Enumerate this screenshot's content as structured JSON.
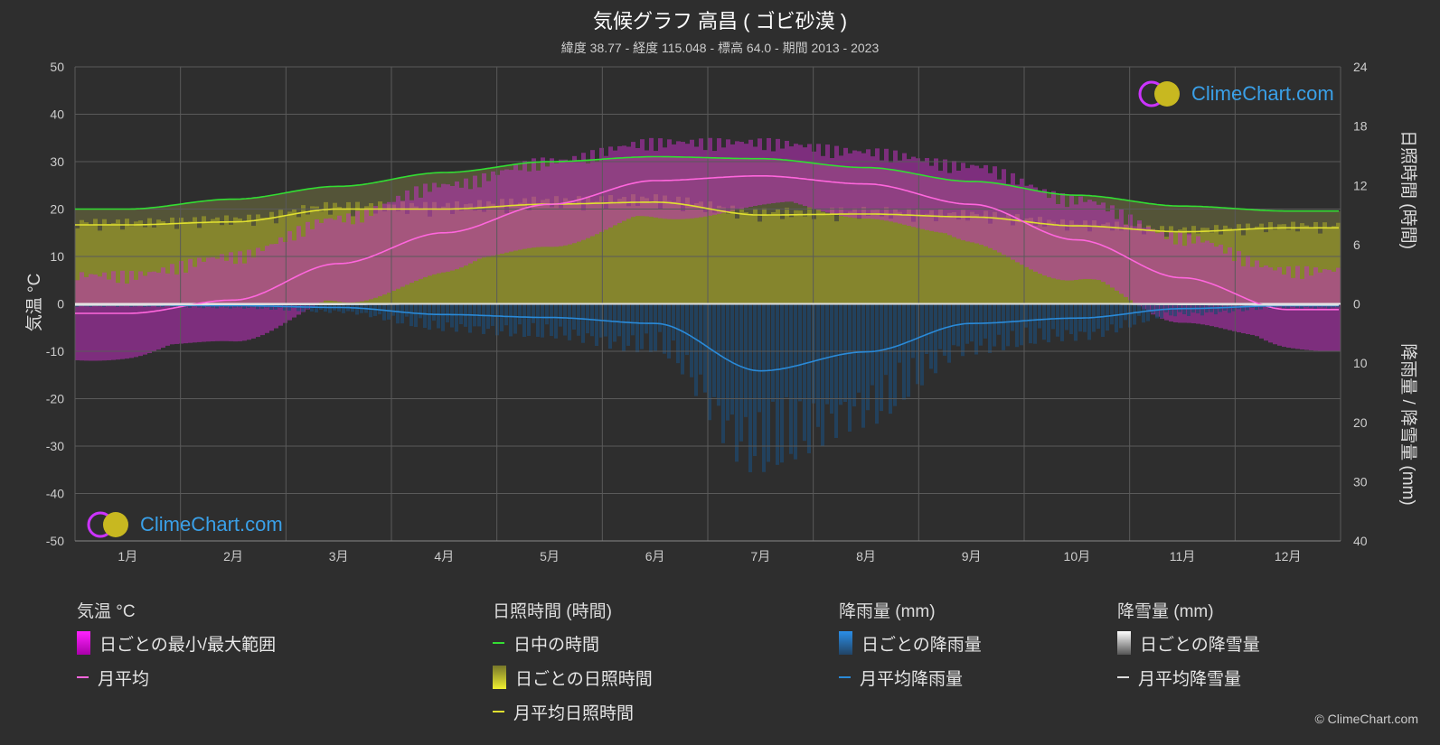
{
  "title": "気候グラフ 高昌 ( ゴビ砂漠 )",
  "subtitle": "緯度 38.77 - 経度 115.048 - 標高 64.0 - 期間 2013 - 2023",
  "copyright": "© ClimeChart.com",
  "logo_text": "ClimeChart.com",
  "legend": {
    "temp": {
      "head": "気温 °C",
      "items": [
        "日ごとの最小/最大範囲",
        "月平均"
      ]
    },
    "sun": {
      "head": "日照時間 (時間)",
      "items": [
        "日中の時間",
        "日ごとの日照時間",
        "月平均日照時間"
      ]
    },
    "rain": {
      "head": "降雨量 (mm)",
      "items": [
        "日ごとの降雨量",
        "月平均降雨量"
      ]
    },
    "snow": {
      "head": "降雪量 (mm)",
      "items": [
        "日ごとの降雪量",
        "月平均降雪量"
      ]
    }
  },
  "chart_data": {
    "type": "line",
    "x_categories": [
      "1月",
      "2月",
      "3月",
      "4月",
      "5月",
      "6月",
      "7月",
      "8月",
      "9月",
      "10月",
      "11月",
      "12月"
    ],
    "y_left": {
      "label": "気温 °C",
      "range": [
        -50,
        50
      ],
      "ticks": [
        50,
        40,
        30,
        20,
        10,
        0,
        -10,
        -20,
        -30,
        -40,
        -50
      ]
    },
    "y_right_top": {
      "label": "日照時間 (時間)",
      "range": [
        0,
        24
      ],
      "ticks": [
        24,
        18,
        12,
        6,
        0
      ]
    },
    "y_right_bottom": {
      "label": "降雨量 / 降雪量 (mm)",
      "range": [
        0,
        40
      ],
      "ticks": [
        10,
        20,
        30,
        40
      ]
    },
    "series": [
      {
        "name": "日中の時間",
        "color": "#33dd33",
        "unit": "hours",
        "values": [
          9.6,
          10.6,
          11.9,
          13.3,
          14.4,
          14.9,
          14.7,
          13.8,
          12.4,
          11.0,
          9.9,
          9.4
        ]
      },
      {
        "name": "月平均日照時間",
        "color": "#e0e030",
        "unit": "hours",
        "values": [
          8.0,
          8.3,
          9.6,
          9.6,
          10.1,
          10.3,
          9.0,
          9.1,
          8.8,
          7.9,
          7.3,
          7.7
        ]
      },
      {
        "name": "月平均",
        "color": "#ff66dd",
        "unit": "°C",
        "values": [
          -2.0,
          0.8,
          8.5,
          15.0,
          21.0,
          26.0,
          27.0,
          25.3,
          21.0,
          13.5,
          5.5,
          -1.2
        ]
      },
      {
        "name": "月平均降雨量",
        "color": "#2a8ad8",
        "unit": "mm",
        "values": [
          0.2,
          0.3,
          0.6,
          1.8,
          2.3,
          3.3,
          11.3,
          8.1,
          3.3,
          2.4,
          0.8,
          0.3
        ]
      },
      {
        "name": "月平均降雪量",
        "color": "#dddddd",
        "unit": "mm",
        "values": [
          0.2,
          0.1,
          0.1,
          0,
          0,
          0,
          0,
          0,
          0,
          0,
          0.1,
          0.2
        ]
      },
      {
        "name": "日ごとの最小/最大範囲",
        "color": "#cc22cc",
        "unit": "°C",
        "min": [
          -10,
          -6,
          1,
          8,
          14,
          19,
          22,
          20,
          14,
          6,
          -2,
          -8
        ],
        "max": [
          4,
          8,
          16,
          23,
          28,
          32,
          32,
          30,
          27,
          20,
          12,
          5
        ]
      }
    ]
  }
}
